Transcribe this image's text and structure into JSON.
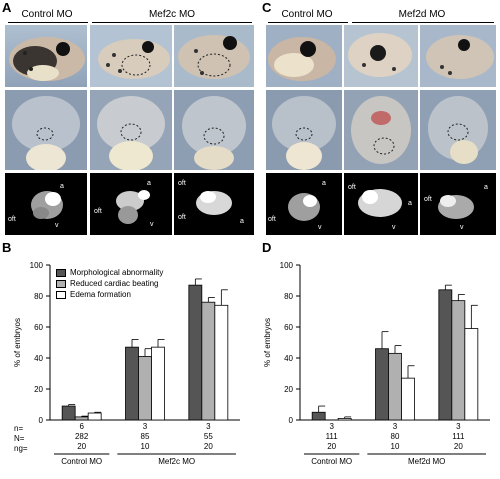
{
  "panels": {
    "A": {
      "letter": "A",
      "groups": [
        "Control MO",
        "Mef2c MO"
      ]
    },
    "C": {
      "letter": "C",
      "groups": [
        "Control MO",
        "Mef2d MO"
      ]
    },
    "B": {
      "letter": "B"
    },
    "D": {
      "letter": "D"
    }
  },
  "heart_labels": {
    "A1": [
      "a",
      "oft",
      "v"
    ],
    "A2": [
      "a",
      "oft",
      "v"
    ],
    "A3": [
      "oft",
      "oft",
      "a"
    ],
    "C1": [
      "a",
      "oft",
      "v"
    ],
    "C2": [
      "oft",
      "a",
      "v"
    ],
    "C3": [
      "oft",
      "a",
      "v"
    ]
  },
  "row_labels": {
    "n": "n=",
    "N": "N=",
    "ng": "ng="
  },
  "chart_data": [
    {
      "type": "bar",
      "panel": "B",
      "ylabel": "% of embryos",
      "ylim": [
        0,
        100
      ],
      "yticks": [
        0,
        20,
        40,
        60,
        80,
        100
      ],
      "categories": [
        "Control MO 20",
        "Mef2c MO 10",
        "Mef2c MO 20"
      ],
      "series": [
        {
          "name": "Morphological abnormality",
          "color": "#555555",
          "values": [
            9,
            47,
            87
          ],
          "errors": [
            1,
            5,
            4
          ]
        },
        {
          "name": "Reduced cardiac beating",
          "color": "#b0b0b0",
          "values": [
            2,
            41,
            76
          ],
          "errors": [
            0.5,
            5,
            3
          ]
        },
        {
          "name": "Edema formation",
          "color": "#ffffff",
          "values": [
            4.5,
            47,
            74
          ],
          "errors": [
            0.5,
            5,
            10
          ]
        }
      ],
      "n": [
        "6",
        "3",
        "3"
      ],
      "N": [
        "282",
        "85",
        "55"
      ],
      "ng": [
        "20",
        "10",
        "20"
      ],
      "groups": [
        {
          "label": "Control MO",
          "span": [
            0,
            0
          ]
        },
        {
          "label": "Mef2c MO",
          "span": [
            1,
            2
          ]
        }
      ]
    },
    {
      "type": "bar",
      "panel": "D",
      "ylabel": "% of embryos",
      "ylim": [
        0,
        100
      ],
      "yticks": [
        0,
        20,
        40,
        60,
        80,
        100
      ],
      "categories": [
        "Control MO 20",
        "Mef2d MO 10",
        "Mef2d MO 20"
      ],
      "series": [
        {
          "name": "Morphological abnormality",
          "color": "#555555",
          "values": [
            5,
            46,
            84
          ],
          "errors": [
            4,
            11,
            3
          ]
        },
        {
          "name": "Reduced cardiac beating",
          "color": "#b0b0b0",
          "values": [
            0,
            43,
            77
          ],
          "errors": [
            0,
            5,
            4
          ]
        },
        {
          "name": "Edema formation",
          "color": "#ffffff",
          "values": [
            1,
            27,
            59
          ],
          "errors": [
            1,
            8,
            15
          ]
        }
      ],
      "n": [
        "3",
        "3",
        "3"
      ],
      "N": [
        "111",
        "80",
        "111"
      ],
      "ng": [
        "20",
        "10",
        "20"
      ],
      "groups": [
        {
          "label": "Control MO",
          "span": [
            0,
            0
          ]
        },
        {
          "label": "Mef2d MO",
          "span": [
            1,
            2
          ]
        }
      ]
    }
  ]
}
